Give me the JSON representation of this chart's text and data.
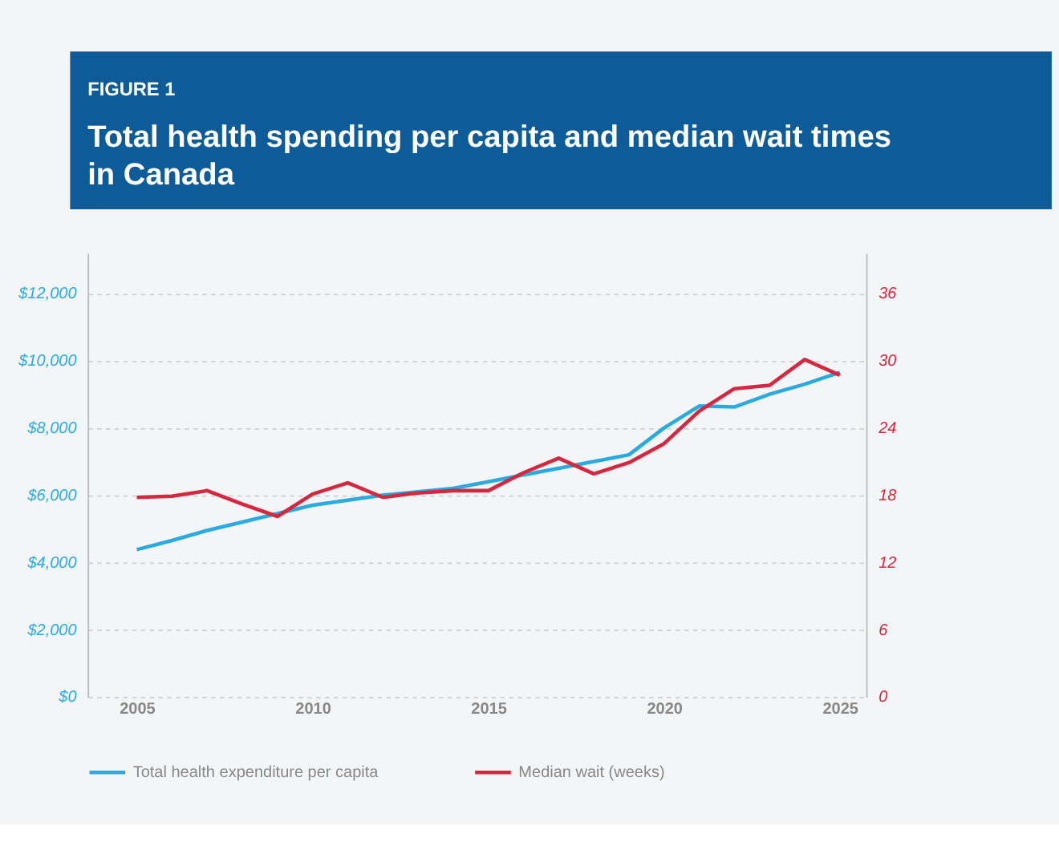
{
  "chart_data": {
    "type": "line",
    "title": "Total health spending per capita and median wait times in Canada",
    "annotations": [
      "FIGURE 1"
    ],
    "x": [
      2005,
      2006,
      2007,
      2008,
      2009,
      2010,
      2011,
      2012,
      2013,
      2014,
      2015,
      2016,
      2017,
      2018,
      2019,
      2020,
      2021,
      2022,
      2023,
      2024,
      2025
    ],
    "series": [
      {
        "name": "Total health expenditure per capita",
        "color": "#29abe2",
        "values": [
          4380,
          4650,
          4950,
          5200,
          5450,
          5700,
          5850,
          6000,
          6100,
          6200,
          6400,
          6600,
          6800,
          7000,
          7200,
          8000,
          8650,
          8620,
          9000,
          9300,
          9650
        ]
      },
      {
        "name": "Median wait (weeks)",
        "color": "#d7263d",
        "axis": "y2",
        "values": [
          17.8,
          17.9,
          18.4,
          17.2,
          16.1,
          18.1,
          19.1,
          17.8,
          18.2,
          18.4,
          18.4,
          20.0,
          21.3,
          19.9,
          20.9,
          22.6,
          25.5,
          27.5,
          27.8,
          30.1,
          28.7
        ]
      }
    ],
    "xlim": [
      2003.6,
      2025.75
    ],
    "xticks": [
      2005,
      2010,
      2015,
      2020,
      2025
    ],
    "ylim": [
      0,
      13200
    ],
    "yticks": [
      {
        "value": 0,
        "label": "$0"
      },
      {
        "value": 2000,
        "label": "$2,000"
      },
      {
        "value": 4000,
        "label": "$4,000"
      },
      {
        "value": 6000,
        "label": "$6,000"
      },
      {
        "value": 8000,
        "label": "$8,000"
      },
      {
        "value": 10000,
        "label": "$10,000"
      },
      {
        "value": 12000,
        "label": "$12,000"
      }
    ],
    "y2lim": [
      0,
      39.6
    ],
    "y2ticks": [
      0,
      6,
      12,
      18,
      24,
      30,
      36
    ],
    "grid": "y",
    "legend": "bottom",
    "line_style": "solid",
    "marker": "none"
  }
}
